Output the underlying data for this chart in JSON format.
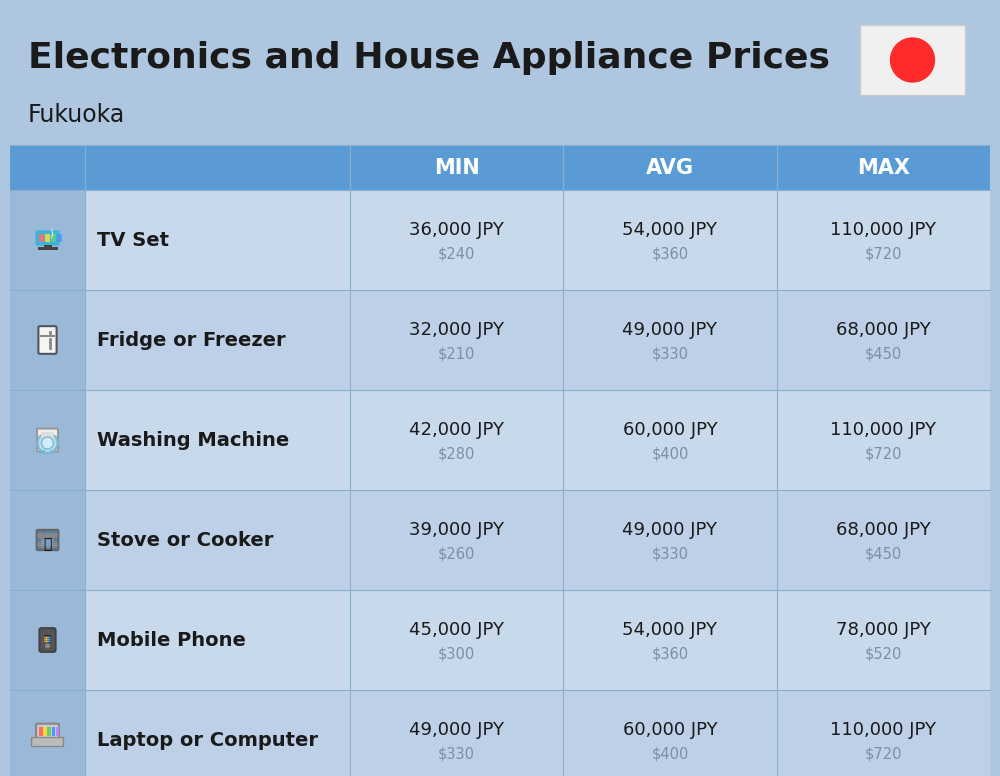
{
  "title": "Electronics and House Appliance Prices",
  "subtitle": "Fukuoka",
  "bg_color": "#aec6df",
  "header_bg": "#5b9bd5",
  "header_text_color": "#ffffff",
  "row_bg_even": "#c8d9ec",
  "row_bg_odd": "#bdd0e8",
  "icon_bg": "#9ab8d8",
  "divider_color": "#8aaece",
  "columns": [
    "MIN",
    "AVG",
    "MAX"
  ],
  "items": [
    {
      "name": "TV Set",
      "min_jpy": "36,000 JPY",
      "min_usd": "$240",
      "avg_jpy": "54,000 JPY",
      "avg_usd": "$360",
      "max_jpy": "110,000 JPY",
      "max_usd": "$720"
    },
    {
      "name": "Fridge or Freezer",
      "min_jpy": "32,000 JPY",
      "min_usd": "$210",
      "avg_jpy": "49,000 JPY",
      "avg_usd": "$330",
      "max_jpy": "68,000 JPY",
      "max_usd": "$450"
    },
    {
      "name": "Washing Machine",
      "min_jpy": "42,000 JPY",
      "min_usd": "$280",
      "avg_jpy": "60,000 JPY",
      "avg_usd": "$400",
      "max_jpy": "110,000 JPY",
      "max_usd": "$720"
    },
    {
      "name": "Stove or Cooker",
      "min_jpy": "39,000 JPY",
      "min_usd": "$260",
      "avg_jpy": "49,000 JPY",
      "avg_usd": "$330",
      "max_jpy": "68,000 JPY",
      "max_usd": "$450"
    },
    {
      "name": "Mobile Phone",
      "min_jpy": "45,000 JPY",
      "min_usd": "$300",
      "avg_jpy": "54,000 JPY",
      "avg_usd": "$360",
      "max_jpy": "78,000 JPY",
      "max_usd": "$520"
    },
    {
      "name": "Laptop or Computer",
      "min_jpy": "49,000 JPY",
      "min_usd": "$330",
      "avg_jpy": "60,000 JPY",
      "avg_usd": "$400",
      "max_jpy": "110,000 JPY",
      "max_usd": "$720"
    }
  ],
  "title_fontsize": 26,
  "subtitle_fontsize": 17,
  "header_fontsize": 15,
  "item_name_fontsize": 14,
  "value_fontsize": 13,
  "usd_fontsize": 10.5,
  "flag_circle_color": "#FF2B2B",
  "flag_bg": "#f0f0f0"
}
